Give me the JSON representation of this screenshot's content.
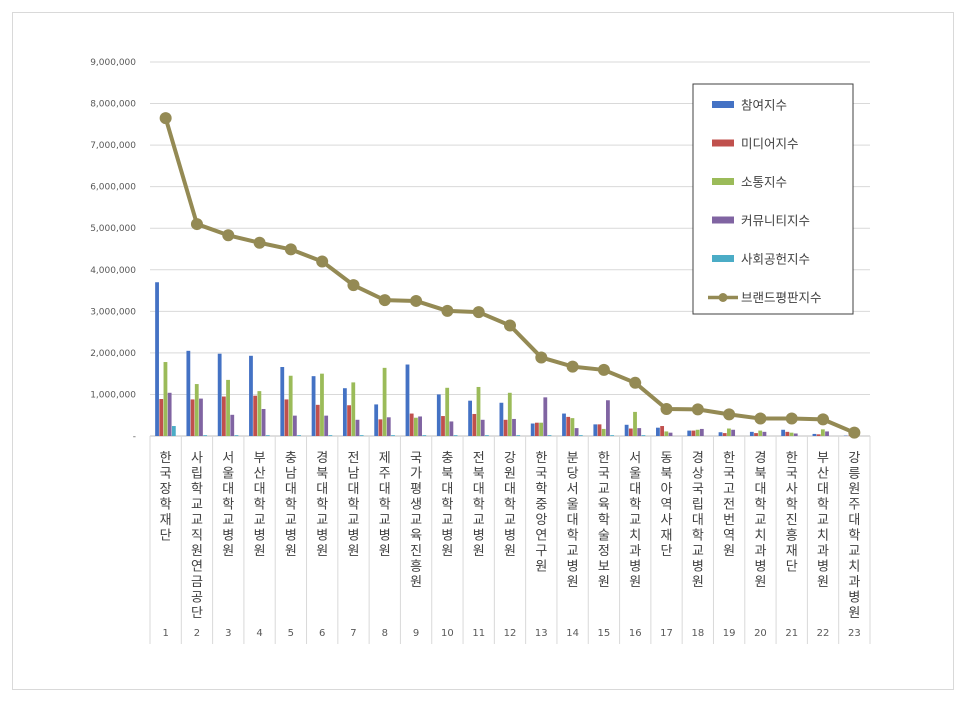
{
  "chart_data": {
    "type": "bar",
    "title": "",
    "xlabel": "",
    "ylabel": "",
    "ylim": [
      0,
      9000000
    ],
    "yticks": [
      {
        "value": 0,
        "label": "-"
      },
      {
        "value": 1000000,
        "label": "1,000,000"
      },
      {
        "value": 2000000,
        "label": "2,000,000"
      },
      {
        "value": 3000000,
        "label": "3,000,000"
      },
      {
        "value": 4000000,
        "label": "4,000,000"
      },
      {
        "value": 5000000,
        "label": "5,000,000"
      },
      {
        "value": 6000000,
        "label": "6,000,000"
      },
      {
        "value": 7000000,
        "label": "7,000,000"
      },
      {
        "value": 8000000,
        "label": "8,000,000"
      },
      {
        "value": 9000000,
        "label": "9,000,000"
      }
    ],
    "grid": true,
    "legend_position": "top-right",
    "ranks": [
      "1",
      "2",
      "3",
      "4",
      "5",
      "6",
      "7",
      "8",
      "9",
      "10",
      "11",
      "12",
      "13",
      "14",
      "15",
      "16",
      "17",
      "18",
      "19",
      "20",
      "21",
      "22",
      "23"
    ],
    "categories": [
      "한국장학재단",
      "사립학교교직원연금공단",
      "서울대학교병원",
      "부산대학교병원",
      "충남대학교병원",
      "경북대학교병원",
      "전남대학교병원",
      "제주대학교병원",
      "국가평생교육진흥원",
      "충북대학교병원",
      "전북대학교병원",
      "강원대학교병원",
      "한국학중앙연구원",
      "분당서울대학교병원",
      "한국교육학술정보원",
      "서울대학교치과병원",
      "동북아역사재단",
      "경상국립대학교병원",
      "한국고전번역원",
      "경북대학교치과병원",
      "한국사학진흥재단",
      "부산대학교치과병원",
      "강릉원주대학교치과병원"
    ],
    "series": [
      {
        "name": "참여지수",
        "kind": "bar",
        "color": "#4472c4",
        "values": [
          3700000,
          2050000,
          1980000,
          1930000,
          1660000,
          1440000,
          1150000,
          760000,
          1720000,
          1000000,
          850000,
          800000,
          300000,
          540000,
          280000,
          270000,
          200000,
          130000,
          90000,
          100000,
          150000,
          50000,
          10000
        ]
      },
      {
        "name": "미디어지수",
        "kind": "bar",
        "color": "#c0504d",
        "values": [
          890000,
          880000,
          950000,
          970000,
          880000,
          750000,
          740000,
          400000,
          540000,
          480000,
          530000,
          390000,
          320000,
          460000,
          280000,
          180000,
          240000,
          130000,
          70000,
          70000,
          100000,
          40000,
          10000
        ]
      },
      {
        "name": "소통지수",
        "kind": "bar",
        "color": "#9bbb59",
        "values": [
          1780000,
          1250000,
          1350000,
          1080000,
          1450000,
          1500000,
          1290000,
          1640000,
          440000,
          1160000,
          1180000,
          1040000,
          320000,
          430000,
          170000,
          580000,
          110000,
          150000,
          180000,
          130000,
          80000,
          160000,
          20000
        ]
      },
      {
        "name": "커뮤니티지수",
        "kind": "bar",
        "color": "#8064a2",
        "values": [
          1040000,
          900000,
          510000,
          650000,
          490000,
          490000,
          390000,
          450000,
          470000,
          350000,
          390000,
          410000,
          930000,
          190000,
          860000,
          190000,
          80000,
          170000,
          150000,
          100000,
          60000,
          110000,
          0
        ]
      },
      {
        "name": "사회공헌지수",
        "kind": "bar",
        "color": "#4bacc6",
        "values": [
          240000,
          20000,
          20000,
          20000,
          20000,
          20000,
          20000,
          20000,
          20000,
          20000,
          20000,
          20000,
          20000,
          20000,
          20000,
          20000,
          0,
          0,
          0,
          0,
          0,
          0,
          0
        ]
      },
      {
        "name": "브랜드평판지수",
        "kind": "line",
        "color": "#948a54",
        "values": [
          7650000,
          5100000,
          4830000,
          4650000,
          4490000,
          4200000,
          3630000,
          3270000,
          3250000,
          3010000,
          2980000,
          2660000,
          1890000,
          1670000,
          1590000,
          1280000,
          650000,
          640000,
          520000,
          420000,
          420000,
          400000,
          80000
        ]
      }
    ]
  }
}
